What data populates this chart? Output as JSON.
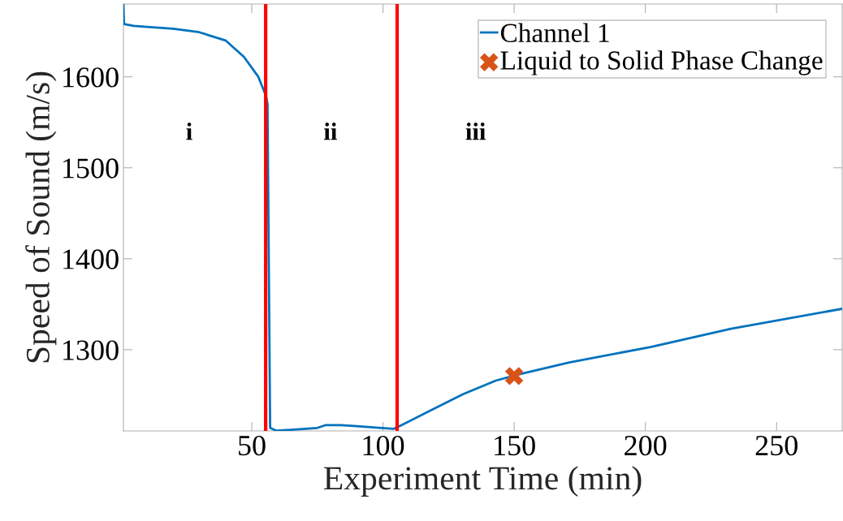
{
  "chart_data": {
    "type": "line",
    "xlabel": "Experiment Time (min)",
    "ylabel": "Speed of Sound (m/s)",
    "xlim": [
      1.1,
      275
    ],
    "ylim": [
      1210.7,
      1680
    ],
    "xticks": [
      50,
      100,
      150,
      200,
      250
    ],
    "yticks": [
      1300,
      1400,
      1500,
      1600
    ],
    "grid": false,
    "legend": "top right",
    "series": [
      {
        "name": "Channel 1",
        "color": "#0072bd",
        "marker": "none",
        "line_style": "solid",
        "x": [
          1.1,
          1.3,
          5,
          10,
          20,
          30,
          40,
          47,
          52.5,
          54.6,
          55.5,
          56,
          57,
          59.3,
          65,
          75,
          78,
          84,
          90,
          99.5,
          104,
          107,
          118,
          130.5,
          143,
          152,
          171,
          202,
          232.6,
          275
        ],
        "values": [
          1680,
          1658,
          1656,
          1655,
          1653,
          1649,
          1640,
          1622,
          1600,
          1585,
          1578,
          1570,
          1214,
          1211,
          1212,
          1214,
          1217,
          1217,
          1216,
          1214,
          1213,
          1217,
          1233,
          1251,
          1266,
          1273,
          1286,
          1303,
          1323,
          1345
        ]
      },
      {
        "name": "Liquid to Solid Phase Change",
        "type": "scatter",
        "color": "#d95319",
        "marker": "cross",
        "x": [
          150
        ],
        "values": [
          1271
        ]
      }
    ],
    "ref_lines": [
      {
        "axis": "x",
        "value": 55.3,
        "color": "#ff0000",
        "line_style": "solid"
      },
      {
        "axis": "x",
        "value": 105.4,
        "color": "#ff0000",
        "line_style": "solid"
      }
    ],
    "annotations": [
      "i",
      "ii",
      "iii"
    ]
  }
}
